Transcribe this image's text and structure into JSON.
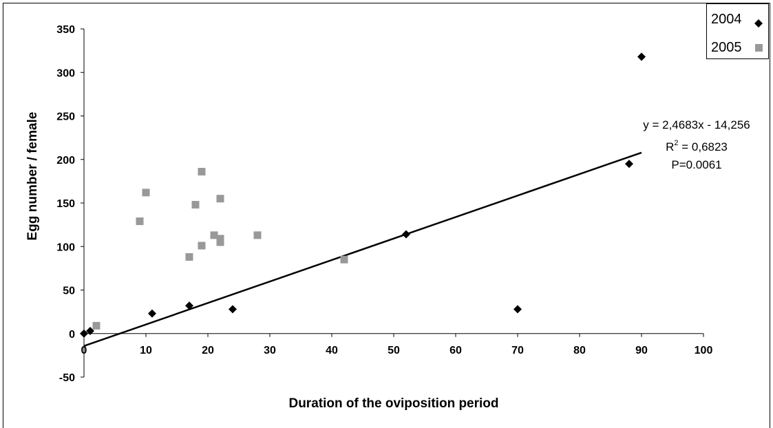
{
  "chart_data": {
    "type": "scatter",
    "xlabel": "Duration of the oviposition period",
    "ylabel": "Egg number / female",
    "xlim": [
      0,
      100
    ],
    "ylim": [
      -50,
      350
    ],
    "x_ticks": [
      0,
      10,
      20,
      30,
      40,
      50,
      60,
      70,
      80,
      90,
      100
    ],
    "y_ticks": [
      -50,
      0,
      50,
      100,
      150,
      200,
      250,
      300,
      350
    ],
    "grid": false,
    "legend_position": "top-right",
    "series": [
      {
        "name": "2004",
        "marker": "diamond",
        "color": "#000000",
        "points": [
          {
            "x": 0,
            "y": 0
          },
          {
            "x": 1,
            "y": 3
          },
          {
            "x": 11,
            "y": 23
          },
          {
            "x": 17,
            "y": 32
          },
          {
            "x": 24,
            "y": 28
          },
          {
            "x": 52,
            "y": 114
          },
          {
            "x": 70,
            "y": 28
          },
          {
            "x": 88,
            "y": 195
          },
          {
            "x": 90,
            "y": 318
          }
        ]
      },
      {
        "name": "2005",
        "marker": "square",
        "color": "#999999",
        "points": [
          {
            "x": 2,
            "y": 9
          },
          {
            "x": 9,
            "y": 129
          },
          {
            "x": 10,
            "y": 162
          },
          {
            "x": 17,
            "y": 88
          },
          {
            "x": 18,
            "y": 148
          },
          {
            "x": 19,
            "y": 101
          },
          {
            "x": 19,
            "y": 186
          },
          {
            "x": 21,
            "y": 113
          },
          {
            "x": 22,
            "y": 105
          },
          {
            "x": 22,
            "y": 109
          },
          {
            "x": 22,
            "y": 155
          },
          {
            "x": 28,
            "y": 113
          },
          {
            "x": 42,
            "y": 85
          }
        ]
      }
    ],
    "trendline": {
      "series": "2004",
      "slope": 2.4683,
      "intercept": -14.256,
      "x_range": [
        0,
        90
      ],
      "color": "#000000",
      "label_lines": [
        "y = 2,4683x - 14,256",
        "R",
        "2",
        " = 0,6823",
        "P=0.0061"
      ]
    }
  }
}
